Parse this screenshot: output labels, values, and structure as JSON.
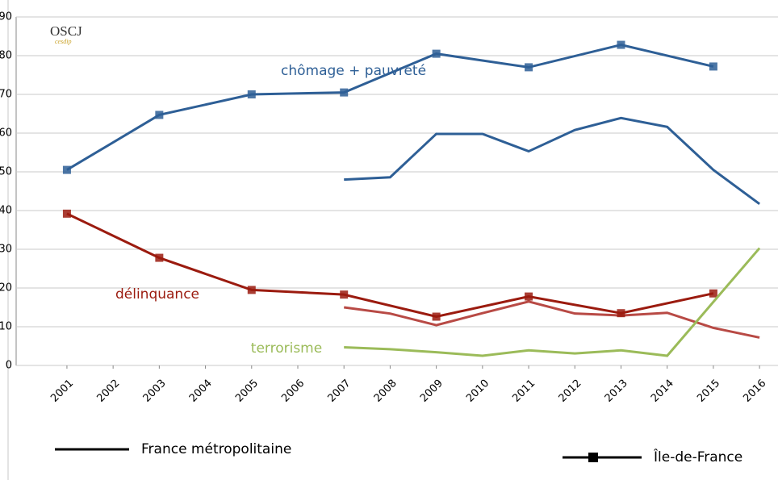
{
  "chart_data": {
    "type": "line",
    "logo": {
      "name": "OSCJ",
      "sub": "cesdip"
    },
    "xlim": [
      1999.9,
      2016.4
    ],
    "xticks": [
      2001,
      2002,
      2003,
      2004,
      2005,
      2006,
      2007,
      2008,
      2009,
      2010,
      2011,
      2012,
      2013,
      2014,
      2015,
      2016
    ],
    "ylim": [
      0,
      90
    ],
    "yticks": [
      0,
      10,
      20,
      30,
      40,
      50,
      60,
      70,
      80,
      90
    ],
    "grid": true,
    "legend": {
      "france": "France métropolitaine",
      "ile_de_france": "Île-de-France"
    },
    "topics": [
      {
        "name": "chômage + pauvreté",
        "color": "#2e5f96",
        "ile_de_france": {
          "color": "#2e5f96",
          "x": [
            2001,
            2003,
            2005,
            2007,
            2009,
            2011,
            2013,
            2015
          ],
          "values": [
            50.5,
            64.7,
            70,
            70.5,
            80.5,
            77,
            82.8,
            77.2
          ]
        },
        "france": {
          "color": "#2e5f96",
          "x": [
            2007,
            2008,
            2009,
            2010,
            2011,
            2012,
            2013,
            2014,
            2015,
            2016
          ],
          "values": [
            48,
            48.6,
            59.8,
            59.8,
            55.3,
            60.8,
            63.9,
            61.6,
            50.5,
            41.7
          ]
        }
      },
      {
        "name": "délinquance",
        "color": "#9b1b0f",
        "ile_de_france": {
          "color": "#9b1b0f",
          "x": [
            2001,
            2003,
            2005,
            2007,
            2009,
            2011,
            2013,
            2015
          ],
          "values": [
            39.2,
            27.8,
            19.5,
            18.3,
            12.6,
            17.8,
            13.5,
            18.6
          ]
        },
        "france": {
          "color": "#b84a45",
          "x": [
            2007,
            2008,
            2009,
            2010,
            2011,
            2012,
            2013,
            2014,
            2015,
            2016
          ],
          "values": [
            15,
            13.4,
            10.4,
            13.5,
            16.5,
            13.4,
            12.9,
            13.6,
            9.7,
            7.2
          ]
        }
      },
      {
        "name": "terrorisme",
        "color": "#9bbb59",
        "france": {
          "color": "#9bbb59",
          "x": [
            2007,
            2008,
            2009,
            2010,
            2011,
            2012,
            2013,
            2014,
            2015,
            2016
          ],
          "values": [
            4.7,
            4.2,
            3.4,
            2.5,
            3.9,
            3.1,
            3.9,
            2.5,
            16.4,
            30.3
          ]
        }
      }
    ]
  }
}
